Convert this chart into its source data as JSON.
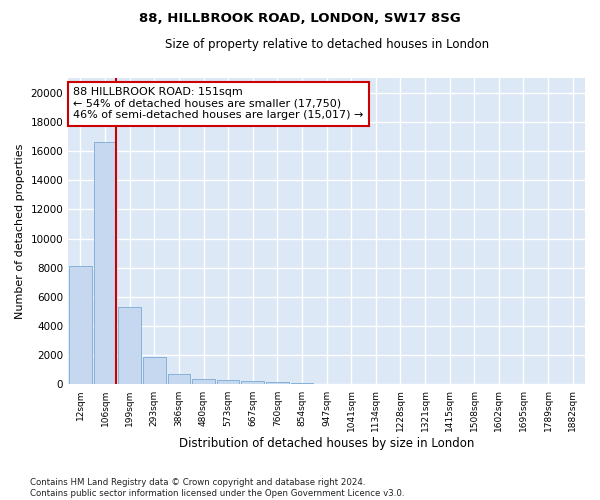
{
  "title1": "88, HILLBROOK ROAD, LONDON, SW17 8SG",
  "title2": "Size of property relative to detached houses in London",
  "xlabel": "Distribution of detached houses by size in London",
  "ylabel": "Number of detached properties",
  "bar_categories": [
    "12sqm",
    "106sqm",
    "199sqm",
    "293sqm",
    "386sqm",
    "480sqm",
    "573sqm",
    "667sqm",
    "760sqm",
    "854sqm",
    "947sqm",
    "1041sqm",
    "1134sqm",
    "1228sqm",
    "1321sqm",
    "1415sqm",
    "1508sqm",
    "1602sqm",
    "1695sqm",
    "1789sqm",
    "1882sqm"
  ],
  "bar_values": [
    8100,
    16600,
    5300,
    1850,
    720,
    370,
    280,
    230,
    195,
    130,
    0,
    0,
    0,
    0,
    0,
    0,
    0,
    0,
    0,
    0,
    0
  ],
  "bar_color": "#c5d8f0",
  "bar_edge_color": "#7aaad4",
  "red_line_x": 1.45,
  "red_line_color": "#cc0000",
  "annotation_text": "88 HILLBROOK ROAD: 151sqm\n← 54% of detached houses are smaller (17,750)\n46% of semi-detached houses are larger (15,017) →",
  "annotation_box_color": "#ffffff",
  "annotation_box_edge_color": "#cc0000",
  "ylim": [
    0,
    21000
  ],
  "yticks": [
    0,
    2000,
    4000,
    6000,
    8000,
    10000,
    12000,
    14000,
    16000,
    18000,
    20000
  ],
  "bg_color": "#dce8f5",
  "grid_color": "#ffffff",
  "fig_bg_color": "#ffffff",
  "footnote": "Contains HM Land Registry data © Crown copyright and database right 2024.\nContains public sector information licensed under the Open Government Licence v3.0."
}
